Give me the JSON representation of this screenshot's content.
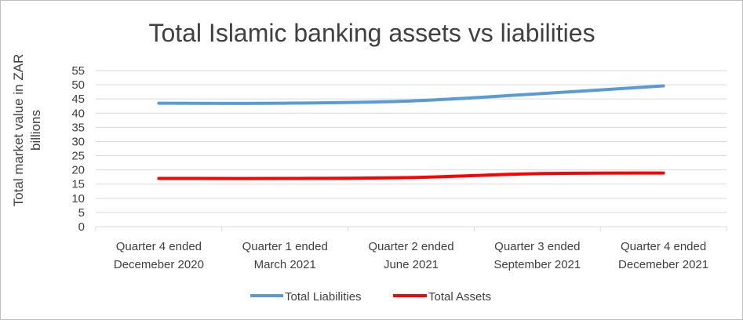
{
  "chart_data": {
    "type": "line",
    "title": "Total Islamic banking assets vs liabilities",
    "ylabel": [
      "Total market value in ZAR",
      "billions"
    ],
    "xlabel": "",
    "categories": [
      [
        "Quarter 4 ended",
        "Decemeber 2020"
      ],
      [
        "Quarter 1 ended",
        "March 2021"
      ],
      [
        "Quarter 2 ended",
        "June 2021"
      ],
      [
        "Quarter 3 ended",
        "September 2021"
      ],
      [
        "Quarter 4 ended",
        "Decemeber 2021"
      ]
    ],
    "ylim": [
      0,
      55
    ],
    "yticks": [
      "0",
      "5",
      "10",
      "15",
      "20",
      "25",
      "30",
      "35",
      "40",
      "45",
      "50",
      "55"
    ],
    "grid": true,
    "legend": "bottom",
    "series": [
      {
        "name": "Total Liabilities",
        "values": [
          43.5,
          43.5,
          44.3,
          46.8,
          49.6
        ],
        "color": "#5b9bd5"
      },
      {
        "name": "Total Assets",
        "values": [
          17.0,
          17.0,
          17.3,
          18.7,
          18.9
        ],
        "color": "#ff0000"
      }
    ]
  }
}
